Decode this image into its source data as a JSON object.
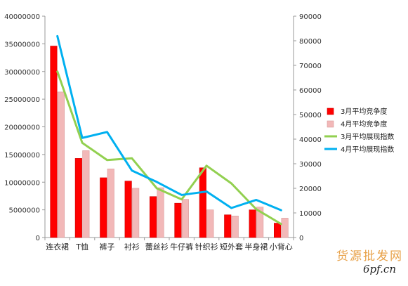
{
  "chart_data": {
    "type": "bar",
    "categories": [
      "连衣裙",
      "T恤",
      "裤子",
      "衬衫",
      "蕾丝衫",
      "牛仔裤",
      "针织衫",
      "短外套",
      "半身裙",
      "小背心"
    ],
    "series": [
      {
        "name": "3月平均竞争度",
        "kind": "bar",
        "axis": "left",
        "color": "#ff0000",
        "values": [
          34600000,
          14300000,
          10800000,
          10200000,
          7400000,
          6200000,
          12600000,
          4100000,
          5000000,
          2600000
        ]
      },
      {
        "name": "4月平均竞争度",
        "kind": "bar",
        "axis": "left",
        "color": "#f2b8b8",
        "values": [
          26300000,
          15700000,
          12400000,
          8900000,
          9000000,
          6900000,
          5000000,
          3900000,
          5500000,
          3500000
        ]
      },
      {
        "name": "3月平均展现指数",
        "kind": "line",
        "axis": "right",
        "color": "#92d050",
        "values": [
          67500,
          38500,
          31500,
          32200,
          20000,
          15500,
          29200,
          22000,
          11500,
          5500
        ]
      },
      {
        "name": "4月平均展现指数",
        "kind": "line",
        "axis": "right",
        "color": "#00b0f0",
        "values": [
          81900,
          40500,
          42900,
          27200,
          22600,
          17300,
          18700,
          12000,
          15300,
          11100
        ]
      }
    ],
    "y_left": {
      "min": 0,
      "max": 40000000,
      "step": 5000000,
      "tick_labels": [
        "0",
        "5000000",
        "10000000",
        "15000000",
        "20000000",
        "25000000",
        "30000000",
        "35000000",
        "40000000"
      ]
    },
    "y_right": {
      "min": 0,
      "max": 90000,
      "step": 10000,
      "tick_labels": [
        "0",
        "10000",
        "20000",
        "30000",
        "40000",
        "50000",
        "60000",
        "70000",
        "80000",
        "90000"
      ]
    },
    "grid": false,
    "legend_position": "right",
    "title": "",
    "xlabel": "",
    "ylabel": ""
  },
  "watermark": {
    "chinese": "货源批发网",
    "url": "6pf.cn"
  }
}
